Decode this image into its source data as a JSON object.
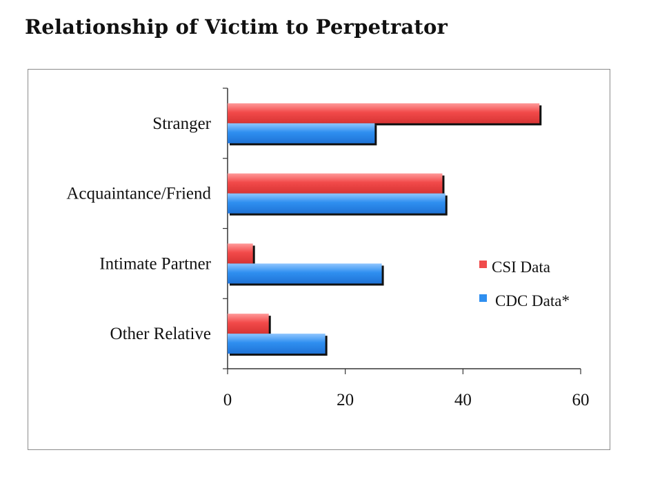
{
  "title": "Relationship of Victim to Perpetrator",
  "colors": {
    "csi": "#f04b4b",
    "cdc": "#2f8ff0",
    "axis": "#333333",
    "frame": "#8a8a8a"
  },
  "chart_data": {
    "type": "bar",
    "orientation": "horizontal",
    "categories": [
      "Stranger",
      "Acquaintance/Friend",
      "Intimate Partner",
      "Other Relative"
    ],
    "series": [
      {
        "name": "CSI Data",
        "values": [
          53,
          36.5,
          4.3,
          7
        ]
      },
      {
        "name": "CDC Data*",
        "values": [
          25,
          37,
          26.2,
          16.6
        ]
      }
    ],
    "xlim": [
      0,
      60
    ],
    "xticks": [
      "0",
      "20",
      "40",
      "60"
    ],
    "xlabel": "",
    "ylabel": "",
    "legend": "right",
    "grid": false
  }
}
